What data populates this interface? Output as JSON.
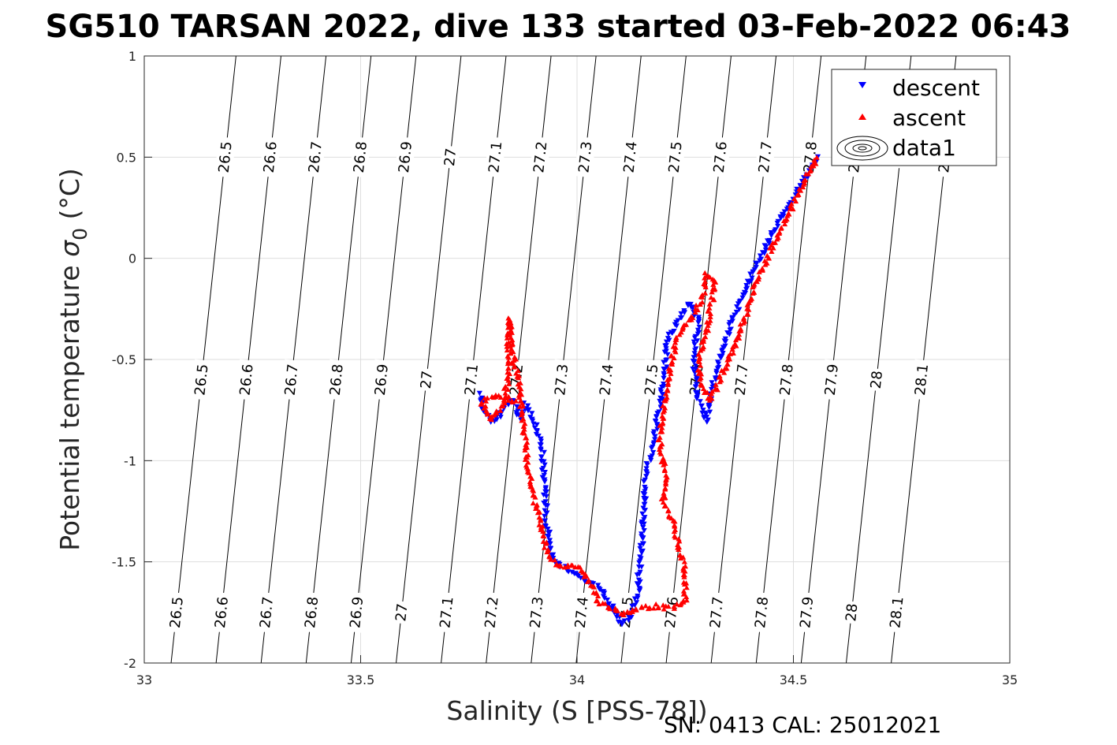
{
  "chart_data": {
    "type": "scatter",
    "title": "SG510 TARSAN 2022, dive 133 started 03-Feb-2022 06:43",
    "xlabel": "Salinity (S [PSS-78])",
    "ylabel": "Potential temperature σ_0 (°C)",
    "ylabel_main": "Potential temperature ",
    "ylabel_sym": "σ",
    "ylabel_sub": "0",
    "ylabel_unit": " (°C)",
    "xlim": [
      33,
      35
    ],
    "ylim": [
      -2,
      1
    ],
    "xticks": [
      33,
      33.5,
      34,
      34.5,
      35
    ],
    "yticks": [
      -2,
      -1.5,
      -1,
      -0.5,
      0,
      0.5,
      1
    ],
    "grid": true,
    "legend": {
      "placement": "top-right",
      "entries": [
        "descent",
        "ascent",
        "data1"
      ]
    },
    "footer": "SN: 0413  CAL: 25012021",
    "isopycnals": {
      "levels": [
        26.5,
        26.6,
        26.7,
        26.8,
        26.9,
        27.0,
        27.1,
        27.2,
        27.3,
        27.4,
        27.5,
        27.6,
        27.7,
        27.8,
        27.9,
        28.0,
        28.1
      ],
      "labels": [
        "26.5",
        "26.6",
        "26.7",
        "26.8",
        "26.9",
        "27",
        "27.1",
        "27.2",
        "27.3",
        "27.4",
        "27.5",
        "27.6",
        "27.7",
        "27.8",
        "27.9",
        "28",
        "28.1"
      ],
      "color": "#000000"
    },
    "series": [
      {
        "name": "descent",
        "color": "#0000ff",
        "marker": "triangle-down",
        "path": [
          [
            34.555,
            0.5
          ],
          [
            34.5,
            0.3
          ],
          [
            34.45,
            0.12
          ],
          [
            34.4,
            -0.1
          ],
          [
            34.36,
            -0.3
          ],
          [
            34.33,
            -0.5
          ],
          [
            34.31,
            -0.66
          ],
          [
            34.3,
            -0.8
          ],
          [
            34.28,
            -0.7
          ],
          [
            34.27,
            -0.5
          ],
          [
            34.28,
            -0.3
          ],
          [
            34.26,
            -0.22
          ],
          [
            34.23,
            -0.33
          ],
          [
            34.21,
            -0.4
          ],
          [
            34.2,
            -0.6
          ],
          [
            34.185,
            -0.8
          ],
          [
            34.17,
            -0.98
          ],
          [
            34.16,
            -1.05
          ],
          [
            34.15,
            -1.4
          ],
          [
            34.14,
            -1.65
          ],
          [
            34.13,
            -1.72
          ],
          [
            34.12,
            -1.78
          ],
          [
            34.1,
            -1.8
          ],
          [
            34.09,
            -1.75
          ],
          [
            34.07,
            -1.7
          ],
          [
            34.05,
            -1.62
          ],
          [
            34.02,
            -1.6
          ],
          [
            33.99,
            -1.55
          ],
          [
            33.96,
            -1.52
          ],
          [
            33.94,
            -1.45
          ],
          [
            33.93,
            -1.3
          ],
          [
            33.925,
            -1.1
          ],
          [
            33.92,
            -0.95
          ],
          [
            33.9,
            -0.8
          ],
          [
            33.88,
            -0.72
          ],
          [
            33.87,
            -0.8
          ],
          [
            33.855,
            -0.7
          ],
          [
            33.84,
            -0.72
          ],
          [
            33.82,
            -0.78
          ],
          [
            33.8,
            -0.8
          ],
          [
            33.78,
            -0.75
          ],
          [
            33.775,
            -0.66
          ]
        ]
      },
      {
        "name": "ascent",
        "color": "#ff0000",
        "marker": "triangle-up",
        "path": [
          [
            34.555,
            0.5
          ],
          [
            34.5,
            0.27
          ],
          [
            34.45,
            0.05
          ],
          [
            34.41,
            -0.15
          ],
          [
            34.37,
            -0.4
          ],
          [
            34.34,
            -0.55
          ],
          [
            34.31,
            -0.7
          ],
          [
            34.29,
            -0.65
          ],
          [
            34.28,
            -0.5
          ],
          [
            34.3,
            -0.35
          ],
          [
            34.32,
            -0.12
          ],
          [
            34.3,
            -0.08
          ],
          [
            34.29,
            -0.2
          ],
          [
            34.26,
            -0.3
          ],
          [
            34.23,
            -0.4
          ],
          [
            34.22,
            -0.5
          ],
          [
            34.21,
            -0.6
          ],
          [
            34.2,
            -0.75
          ],
          [
            34.19,
            -0.88
          ],
          [
            34.205,
            -1.1
          ],
          [
            34.2,
            -1.2
          ],
          [
            34.22,
            -1.3
          ],
          [
            34.25,
            -1.55
          ],
          [
            34.25,
            -1.7
          ],
          [
            34.22,
            -1.73
          ],
          [
            34.18,
            -1.72
          ],
          [
            34.14,
            -1.73
          ],
          [
            34.11,
            -1.76
          ],
          [
            34.08,
            -1.73
          ],
          [
            34.05,
            -1.7
          ],
          [
            34.03,
            -1.6
          ],
          [
            34.0,
            -1.52
          ],
          [
            33.97,
            -1.52
          ],
          [
            33.95,
            -1.52
          ],
          [
            33.93,
            -1.45
          ],
          [
            33.915,
            -1.3
          ],
          [
            33.9,
            -1.18
          ],
          [
            33.885,
            -1.0
          ],
          [
            33.875,
            -0.8
          ],
          [
            33.865,
            -0.6
          ],
          [
            33.86,
            -0.55
          ],
          [
            33.85,
            -0.45
          ],
          [
            33.845,
            -0.3
          ],
          [
            33.84,
            -0.35
          ],
          [
            33.845,
            -0.55
          ],
          [
            33.83,
            -0.72
          ],
          [
            33.8,
            -0.8
          ],
          [
            33.78,
            -0.72
          ],
          [
            33.79,
            -0.7
          ],
          [
            33.82,
            -0.68
          ],
          [
            33.85,
            -0.7
          ],
          [
            33.87,
            -0.72
          ]
        ]
      }
    ]
  }
}
